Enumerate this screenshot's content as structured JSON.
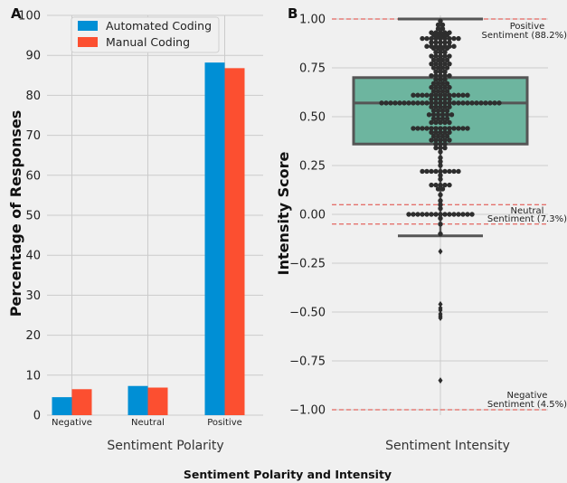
{
  "figure": {
    "suptitle": "Sentiment Polarity and Intensity",
    "background": "#f0f0f0",
    "grid_color": "#cbcbcb"
  },
  "chart_data": [
    {
      "panel_label": "A",
      "type": "bar",
      "categories": [
        "Negative",
        "Neutral",
        "Positive"
      ],
      "series": [
        {
          "name": "Automated Coding",
          "color": "#008fd5",
          "values": [
            4.5,
            7.3,
            88.2
          ]
        },
        {
          "name": "Manual Coding",
          "color": "#fc4f30",
          "values": [
            6.5,
            6.9,
            86.8
          ]
        }
      ],
      "xlabel": "Sentiment Polarity",
      "ylabel": "Percentage of Responses",
      "ylim": [
        0,
        100
      ],
      "yticks": [
        "0",
        "10",
        "20",
        "30",
        "40",
        "50",
        "60",
        "70",
        "80",
        "90",
        "100"
      ],
      "grid": true,
      "legend": "top-left"
    },
    {
      "panel_label": "B",
      "type": "box",
      "xlabel": "Sentiment Intensity",
      "ylabel": "Intensity Score",
      "ylim": [
        -1.0,
        1.0
      ],
      "yticks": [
        "−1.00",
        "−0.75",
        "−0.50",
        "−0.25",
        "0.00",
        "0.25",
        "0.50",
        "0.75",
        "1.00"
      ],
      "box": {
        "q1": 0.36,
        "median": 0.57,
        "q3": 0.7,
        "whisker_low": -0.11,
        "whisker_high": 1.0,
        "fill": "#6db59f",
        "edge": "#555555"
      },
      "outliers": [
        -0.19,
        -0.46,
        -0.48,
        -0.49,
        -0.51,
        -0.52,
        -0.53,
        -0.85
      ],
      "reference_lines": [
        {
          "value": 1.0,
          "label_top": "Positive",
          "label_bottom": "Sentiment (88.2%)"
        },
        {
          "value": 0.05,
          "label_top": "Neutral",
          "label_bottom": "Sentiment (7.3%)"
        },
        {
          "value": -0.05
        },
        {
          "value": -1.0,
          "label_top": "Negative",
          "label_bottom": "Sentiment (4.5%)"
        }
      ],
      "reference_line_color": "#e0443d",
      "swarm": {
        "color": "#2e2e2e",
        "levels": [
          {
            "y": 0.99,
            "n": 1
          },
          {
            "y": 0.97,
            "n": 2
          },
          {
            "y": 0.95,
            "n": 2
          },
          {
            "y": 0.93,
            "n": 5
          },
          {
            "y": 0.92,
            "n": 4
          },
          {
            "y": 0.91,
            "n": 3
          },
          {
            "y": 0.9,
            "n": 9
          },
          {
            "y": 0.88,
            "n": 5
          },
          {
            "y": 0.86,
            "n": 7
          },
          {
            "y": 0.85,
            "n": 4
          },
          {
            "y": 0.83,
            "n": 3
          },
          {
            "y": 0.81,
            "n": 5
          },
          {
            "y": 0.79,
            "n": 4
          },
          {
            "y": 0.77,
            "n": 5
          },
          {
            "y": 0.75,
            "n": 4
          },
          {
            "y": 0.73,
            "n": 3
          },
          {
            "y": 0.71,
            "n": 5
          },
          {
            "y": 0.69,
            "n": 3
          },
          {
            "y": 0.67,
            "n": 4
          },
          {
            "y": 0.65,
            "n": 5
          },
          {
            "y": 0.63,
            "n": 4
          },
          {
            "y": 0.61,
            "n": 13
          },
          {
            "y": 0.59,
            "n": 5
          },
          {
            "y": 0.57,
            "n": 27
          },
          {
            "y": 0.55,
            "n": 5
          },
          {
            "y": 0.53,
            "n": 4
          },
          {
            "y": 0.51,
            "n": 6
          },
          {
            "y": 0.49,
            "n": 4
          },
          {
            "y": 0.47,
            "n": 5
          },
          {
            "y": 0.44,
            "n": 13
          },
          {
            "y": 0.42,
            "n": 5
          },
          {
            "y": 0.4,
            "n": 4
          },
          {
            "y": 0.38,
            "n": 5
          },
          {
            "y": 0.36,
            "n": 3
          },
          {
            "y": 0.34,
            "n": 3
          },
          {
            "y": 0.32,
            "n": 1
          },
          {
            "y": 0.29,
            "n": 1
          },
          {
            "y": 0.27,
            "n": 1
          },
          {
            "y": 0.25,
            "n": 1
          },
          {
            "y": 0.22,
            "n": 9
          },
          {
            "y": 0.2,
            "n": 1
          },
          {
            "y": 0.18,
            "n": 1
          },
          {
            "y": 0.15,
            "n": 5
          },
          {
            "y": 0.13,
            "n": 2
          },
          {
            "y": 0.1,
            "n": 1
          },
          {
            "y": 0.07,
            "n": 1
          },
          {
            "y": 0.05,
            "n": 1
          },
          {
            "y": 0.03,
            "n": 1
          },
          {
            "y": 0.0,
            "n": 15
          },
          {
            "y": -0.02,
            "n": 1
          },
          {
            "y": -0.05,
            "n": 1
          },
          {
            "y": -0.1,
            "n": 1
          }
        ]
      }
    }
  ]
}
